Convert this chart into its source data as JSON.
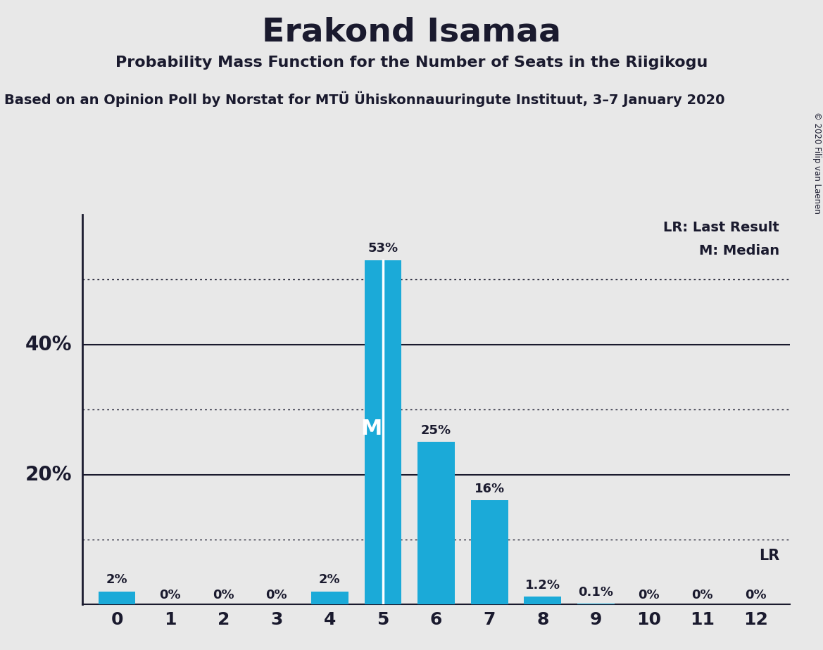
{
  "title": "Erakond Isamaa",
  "subtitle1": "Probability Mass Function for the Number of Seats in the Riigikogu",
  "subtitle2": "Based on an Opinion Poll by Norstat for MTÜ Ühiskonnauuringute Instituut, 3–7 January 2020",
  "copyright": "© 2020 Filip van Laenen",
  "categories": [
    0,
    1,
    2,
    3,
    4,
    5,
    6,
    7,
    8,
    9,
    10,
    11,
    12
  ],
  "values": [
    2,
    0,
    0,
    0,
    2,
    53,
    25,
    16,
    1.2,
    0.1,
    0,
    0,
    0
  ],
  "bar_color": "#1baad8",
  "background_color": "#e8e8e8",
  "text_color": "#1a1a2e",
  "median": 5,
  "median_label": "M",
  "lr_label": "LR",
  "lr_annotation": "LR: Last Result",
  "m_annotation": "M: Median",
  "ylim_max": 60,
  "dotted_lines": [
    10,
    30,
    50
  ],
  "solid_lines": [
    20,
    40
  ],
  "bar_labels": [
    "2%",
    "0%",
    "0%",
    "0%",
    "2%",
    "53%",
    "25%",
    "16%",
    "1.2%",
    "0.1%",
    "0%",
    "0%",
    "0%"
  ],
  "ylabel_values": [
    20,
    40
  ],
  "ylabel_texts": [
    "20%",
    "40%"
  ]
}
